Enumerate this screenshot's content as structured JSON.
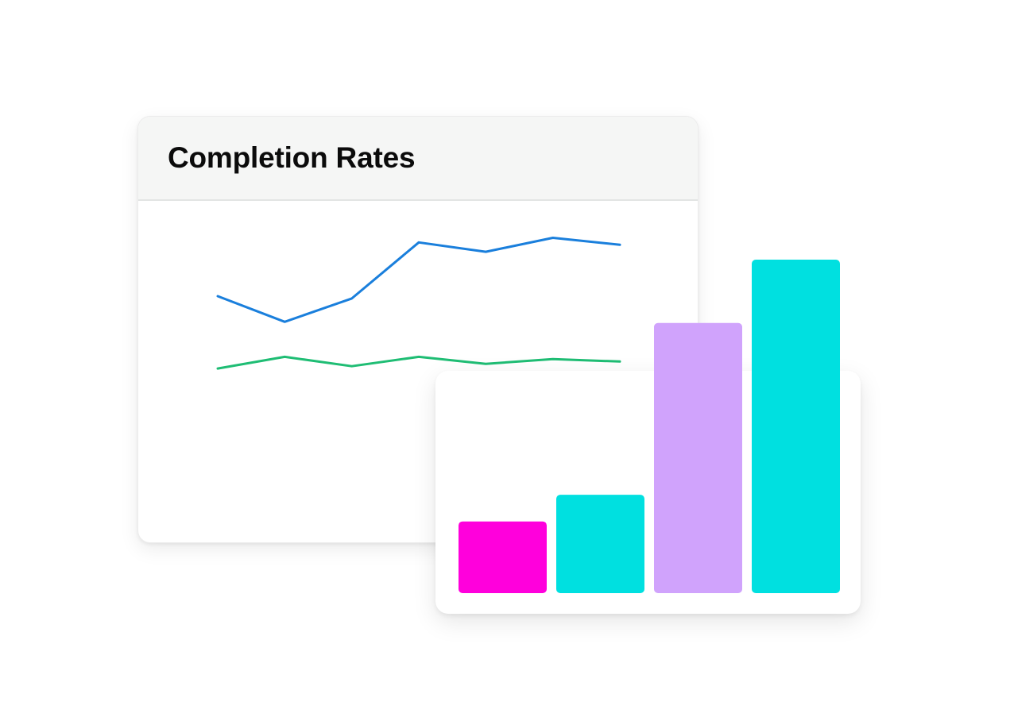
{
  "line_card": {
    "title": "Completion Rates"
  },
  "chart_data": [
    {
      "type": "line",
      "title": "Completion Rates",
      "x": [
        1,
        2,
        3,
        4,
        5,
        6,
        7
      ],
      "ylim": [
        0,
        100
      ],
      "grid": false,
      "series": [
        {
          "values": [
            66,
            55,
            65,
            89,
            85,
            91,
            88
          ],
          "color": "#1a7fdc"
        },
        {
          "values": [
            35,
            40,
            36,
            40,
            37,
            39,
            38
          ],
          "color": "#1fbd74"
        }
      ]
    },
    {
      "type": "bar",
      "categories": [
        "1",
        "2",
        "3",
        "4"
      ],
      "values": [
        21.5,
        29.5,
        81,
        100
      ],
      "ylim": [
        0,
        100
      ],
      "colors": [
        "#ff00dc",
        "#00e0e0",
        "#d0a3fc",
        "#00e0e0"
      ]
    }
  ]
}
